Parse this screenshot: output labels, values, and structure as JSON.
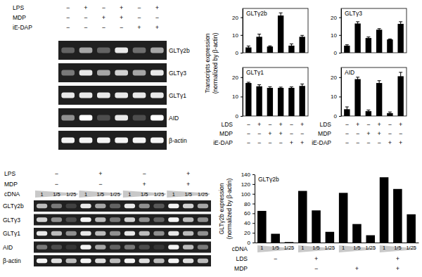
{
  "chart_data": [
    {
      "type": "gel",
      "conditions": [
        {
          "label": "LPS",
          "signs": [
            "−",
            "+",
            "−",
            "+",
            "−",
            "+"
          ]
        },
        {
          "label": "MDP",
          "signs": [
            "−",
            "−",
            "+",
            "+",
            "−",
            "−"
          ]
        },
        {
          "label": "iE-DAP",
          "signs": [
            "−",
            "−",
            "−",
            "−",
            "+",
            "+"
          ]
        }
      ],
      "rows": [
        "GLTγ2b",
        "GLTγ3",
        "GLTγ1",
        "AID",
        "β-actin"
      ],
      "bands": [
        [
          0.3,
          0.6,
          0.3,
          0.9,
          0.35,
          0.6
        ],
        [
          0.4,
          0.9,
          0.6,
          0.8,
          0.6,
          0.9
        ],
        [
          0.9,
          0.9,
          0.9,
          0.9,
          0.9,
          0.9
        ],
        [
          0.5,
          1,
          0.2,
          0.9,
          0.2,
          1
        ],
        [
          0.95,
          0.95,
          0.95,
          0.95,
          0.95,
          0.95
        ]
      ]
    },
    {
      "type": "bar",
      "title": "GLTγ2b",
      "ylabel": [
        "Transcripts expression",
        "(normalized by β-actin)"
      ],
      "values": [
        3,
        9,
        3.5,
        21,
        4,
        9
      ],
      "errors": [
        0.8,
        1.5,
        0.4,
        1.5,
        1,
        0.8
      ],
      "ylim": [
        0,
        25
      ],
      "yticks": [
        0,
        10,
        20
      ],
      "color": "#000000"
    },
    {
      "type": "bar",
      "title": "GLTγ3",
      "values": [
        4,
        16.5,
        8.3,
        13,
        7.5,
        16.3
      ],
      "errors": [
        0.5,
        1,
        0.6,
        0.6,
        0.3,
        1.2
      ],
      "ylim": [
        0,
        25
      ],
      "yticks": [
        0,
        10,
        20
      ],
      "color": "#000000"
    },
    {
      "type": "bar",
      "title": "GLTγ1",
      "values": [
        17,
        15.3,
        14.5,
        14.5,
        14.5,
        15.5
      ],
      "errors": [
        0.4,
        0.8,
        0.6,
        0.4,
        0.5,
        1
      ],
      "ylim": [
        0,
        25
      ],
      "yticks": [
        0,
        10,
        20
      ],
      "color": "#000000",
      "conditions": [
        {
          "label": "LDS",
          "signs": [
            "−",
            "+",
            "−",
            "+",
            "−",
            "+"
          ]
        },
        {
          "label": "MDP",
          "signs": [
            "−",
            "−",
            "+",
            "+",
            "−",
            "−"
          ]
        },
        {
          "label": "iE-DAP",
          "signs": [
            "−",
            "−",
            "−",
            "−",
            "+",
            "+"
          ]
        }
      ]
    },
    {
      "type": "bar",
      "title": "AID",
      "values": [
        3.5,
        19,
        2.5,
        17,
        1.5,
        20.5
      ],
      "errors": [
        1.2,
        1,
        0.6,
        1.2,
        0.6,
        2
      ],
      "ylim": [
        0,
        25
      ],
      "yticks": [
        0,
        10,
        20
      ],
      "color": "#000000",
      "conditions": [
        {
          "label": "LDS",
          "signs": [
            "−",
            "+",
            "−",
            "+",
            "−",
            "+"
          ]
        },
        {
          "label": "MDP",
          "signs": [
            "−",
            "−",
            "+",
            "+",
            "−",
            "−"
          ]
        },
        {
          "label": "iE-DAP",
          "signs": [
            "−",
            "−",
            "−",
            "−",
            "+",
            "+"
          ]
        }
      ]
    },
    {
      "type": "gel",
      "xlabel": "cDNA",
      "lanes": [
        "1",
        "1/5",
        "1/25",
        "1",
        "1/5",
        "1/25",
        "1",
        "1/5",
        "1/25",
        "1",
        "1/5",
        "1/25"
      ],
      "conditions": [
        {
          "label": "LPS",
          "signs": [
            "−",
            "+",
            "−",
            "+"
          ]
        },
        {
          "label": "MDP",
          "signs": [
            "−",
            "−",
            "+",
            "+"
          ]
        }
      ],
      "rows": [
        "GLTγ2b",
        "GLTγ3",
        "GLTγ1",
        "AID",
        "β-actin"
      ],
      "bands": [
        [
          0.7,
          0.4,
          0.15,
          0.9,
          0.6,
          0.3,
          0.9,
          0.5,
          0.25,
          0.95,
          0.8,
          0.6
        ],
        [
          0.8,
          0.5,
          0.2,
          0.95,
          0.7,
          0.4,
          0.8,
          0.5,
          0.3,
          0.95,
          0.7,
          0.5
        ],
        [
          0.9,
          0.7,
          0.5,
          0.9,
          0.7,
          0.5,
          0.9,
          0.7,
          0.5,
          0.9,
          0.7,
          0.5
        ],
        [
          0.4,
          0.2,
          0.1,
          0.95,
          0.6,
          0.3,
          0.4,
          0.2,
          0.1,
          0.95,
          0.7,
          0.4
        ],
        [
          0.95,
          0.85,
          0.7,
          0.95,
          0.85,
          0.7,
          0.95,
          0.85,
          0.7,
          0.95,
          0.85,
          0.7
        ]
      ]
    },
    {
      "type": "bar",
      "title": "GLTγ2b",
      "ylabel": [
        "GLTγ2b expression",
        "(normalized by β-actin)"
      ],
      "xlabel": "cDNA",
      "categories": [
        "1",
        "1/5",
        "1/25",
        "1",
        "1/5",
        "1/25",
        "1",
        "1/5",
        "1/25",
        "1",
        "1/5",
        "1/25"
      ],
      "values": [
        65,
        18,
        1,
        106,
        66,
        22,
        102,
        38,
        15,
        134,
        110,
        58
      ],
      "ylim": [
        0,
        140
      ],
      "yticks": [
        0,
        20,
        40,
        60,
        80,
        100,
        120,
        140
      ],
      "color": "#000000",
      "conditions": [
        {
          "label": "LDS",
          "signs": [
            "−",
            "+",
            null,
            "+"
          ]
        },
        {
          "label": "MDP",
          "signs": [
            null,
            "−",
            "+",
            "+"
          ]
        }
      ]
    }
  ]
}
